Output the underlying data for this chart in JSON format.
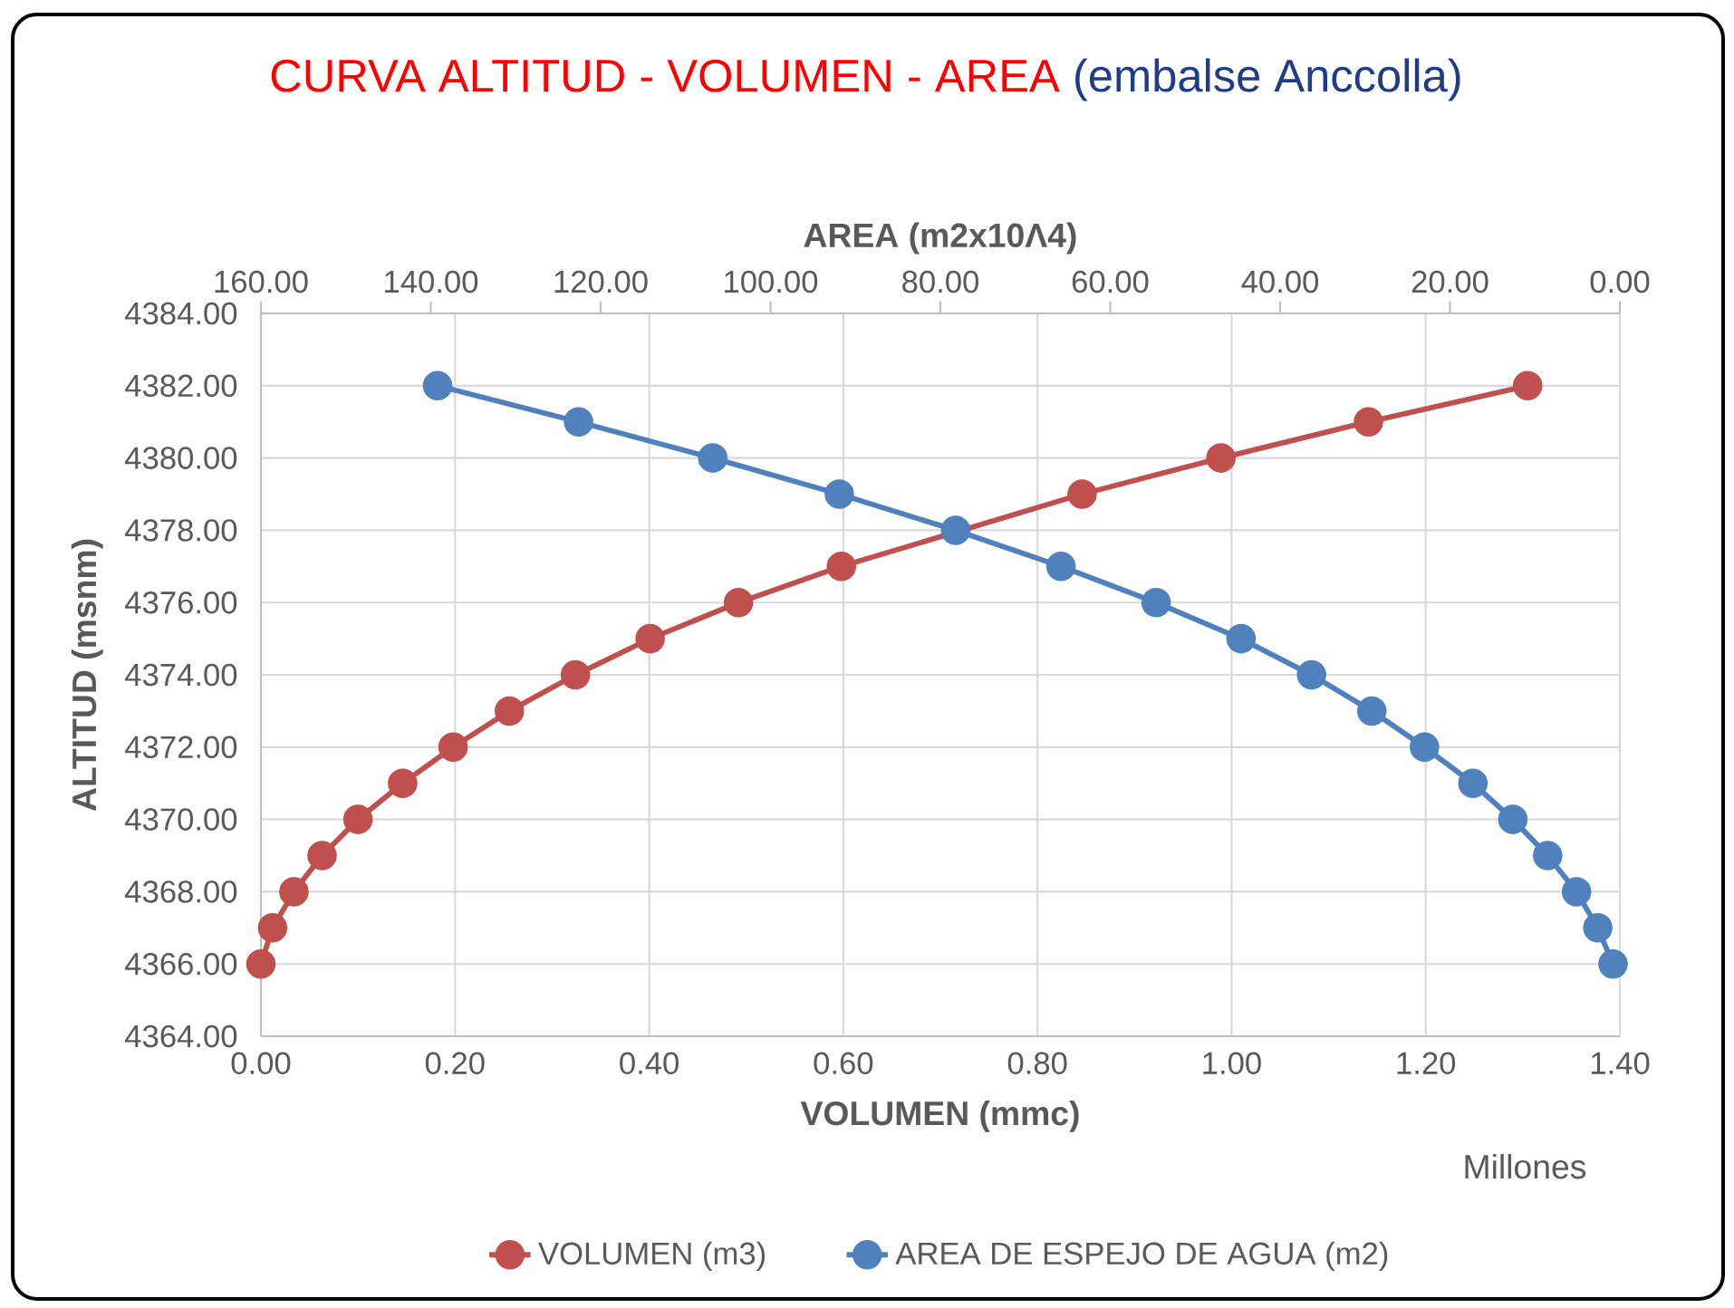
{
  "chart_data": {
    "type": "line",
    "title": "CURVA ALTITUD - VOLUMEN  - AREA",
    "subtitle": "(embalse Anccolla)",
    "xlabel": "VOLUMEN (mmc)",
    "x2label": "AREA (m2x10Λ4)",
    "ylabel": "ALTITUD (msnm)",
    "xlim": [
      0,
      1.4
    ],
    "xticks": [
      {
        "value": 0,
        "label": "0.00"
      },
      {
        "value": 0.2,
        "label": "0.20"
      },
      {
        "value": 0.4,
        "label": "0.40"
      },
      {
        "value": 0.6,
        "label": "0.60"
      },
      {
        "value": 0.8,
        "label": "0.80"
      },
      {
        "value": 1.0,
        "label": "1.00"
      },
      {
        "value": 1.2,
        "label": "1.20"
      },
      {
        "value": 1.4,
        "label": "1.40"
      }
    ],
    "x2lim": [
      160,
      0
    ],
    "x2ticks": [
      {
        "value": 160,
        "label": "160.00"
      },
      {
        "value": 140,
        "label": "140.00"
      },
      {
        "value": 120,
        "label": "120.00"
      },
      {
        "value": 100,
        "label": "100.00"
      },
      {
        "value": 80,
        "label": "80.00"
      },
      {
        "value": 60,
        "label": "60.00"
      },
      {
        "value": 40,
        "label": "40.00"
      },
      {
        "value": 20,
        "label": "20.00"
      },
      {
        "value": 0,
        "label": "0.00"
      }
    ],
    "ylim": [
      4364,
      4384
    ],
    "yticks": [
      {
        "value": 4364,
        "label": "4364.00"
      },
      {
        "value": 4366,
        "label": "4366.00"
      },
      {
        "value": 4368,
        "label": "4368.00"
      },
      {
        "value": 4370,
        "label": "4370.00"
      },
      {
        "value": 4372,
        "label": "4372.00"
      },
      {
        "value": 4374,
        "label": "4374.00"
      },
      {
        "value": 4376,
        "label": "4376.00"
      },
      {
        "value": 4378,
        "label": "4378.00"
      },
      {
        "value": 4380,
        "label": "4380.00"
      },
      {
        "value": 4382,
        "label": "4382.00"
      },
      {
        "value": 4384,
        "label": "4384.00"
      }
    ],
    "grid": true,
    "legend": "bottom",
    "marker": "circle",
    "annotations": [
      "Millones"
    ],
    "series": [
      {
        "name": "VOLUMEN (m3)",
        "color": "#c0504d",
        "x": [
          0.0,
          0.012,
          0.034,
          0.063,
          0.1,
          0.146,
          0.198,
          0.256,
          0.324,
          0.401,
          0.492,
          0.598,
          0.716,
          0.846,
          0.989,
          1.141,
          1.305
        ],
        "values": [
          4366,
          4367,
          4368,
          4369,
          4370,
          4371,
          4372,
          4373,
          4374,
          4375,
          4376,
          4377,
          null,
          4379,
          4380,
          4381,
          4382
        ]
      },
      {
        "name": "AREA DE ESPEJO DE AGUA (m2)",
        "color": "#4f81bd",
        "axis": "x2",
        "x": [
          0.8,
          2.6,
          5.1,
          8.5,
          12.6,
          17.3,
          23.0,
          29.2,
          36.3,
          44.6,
          54.6,
          65.8,
          78.2,
          91.9,
          106.8,
          122.6,
          139.2
        ],
        "values": [
          4366,
          4367,
          4368,
          4369,
          4370,
          4371,
          4372,
          4373,
          4374,
          4375,
          4376,
          4377,
          4378,
          4379,
          4380,
          4381,
          4382
        ]
      }
    ]
  }
}
